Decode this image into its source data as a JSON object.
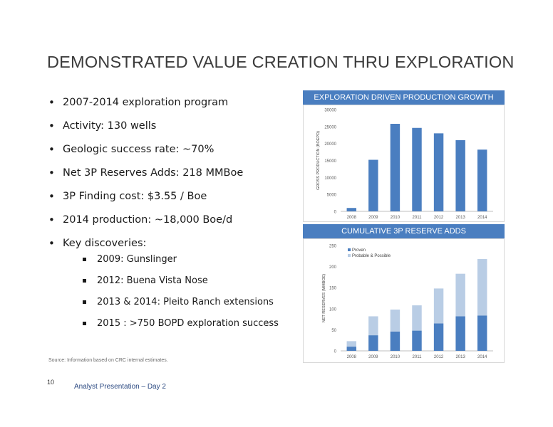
{
  "slide": {
    "title": "DEMONSTRATED VALUE CREATION THRU EXPLORATION",
    "bullets": [
      "2007-2014 exploration program",
      "Activity: 130 wells",
      "Geologic success rate: ~70%",
      "Net 3P Reserves Adds: 218 MMBoe",
      "3P Finding cost: $3.55 / Boe",
      "2014 production: ~18,000 Boe/d",
      "Key discoveries:"
    ],
    "sub_bullets": [
      "2009: Gunslinger",
      "2012: Buena Vista Nose",
      "2013 & 2014: Pleito Ranch extensions",
      "2015 : >750 BOPD exploration success"
    ],
    "source": "Source: Information based on CRC internal estimates.",
    "page_number": "10",
    "footer": "Analyst Presentation – Day 2",
    "accent_color": "#4a7ec0"
  },
  "chart_data": [
    {
      "type": "bar",
      "title": "EXPLORATION DRIVEN PRODUCTION GROWTH",
      "ylabel": "GROSS PRODUCTION (BOEPD)",
      "categories": [
        "2008",
        "2009",
        "2010",
        "2011",
        "2012",
        "2013",
        "2014"
      ],
      "values": [
        1000,
        15200,
        25800,
        24600,
        23000,
        21000,
        18200
      ],
      "ylim": [
        0,
        30000
      ],
      "yticks": [
        0,
        5000,
        10000,
        15000,
        20000,
        25000,
        30000
      ],
      "color": "#4a7ec0",
      "grid": false
    },
    {
      "type": "bar",
      "stacked": true,
      "title": "CUMULATIVE 3P RESERVE ADDS",
      "ylabel": "NET RESERVES (MMBOE)",
      "categories": [
        "2008",
        "2009",
        "2010",
        "2011",
        "2012",
        "2013",
        "2014"
      ],
      "series": [
        {
          "name": "Proven",
          "values": [
            10,
            37,
            46,
            48,
            65,
            82,
            84
          ],
          "color": "#4a7ec0"
        },
        {
          "name": "Probable & Possible",
          "values": [
            13,
            45,
            52,
            60,
            83,
            101,
            134
          ],
          "color": "#b9cde5"
        }
      ],
      "ylim": [
        0,
        250
      ],
      "yticks": [
        0,
        50,
        100,
        150,
        200,
        250
      ],
      "legend": "top-left",
      "grid": false
    }
  ]
}
